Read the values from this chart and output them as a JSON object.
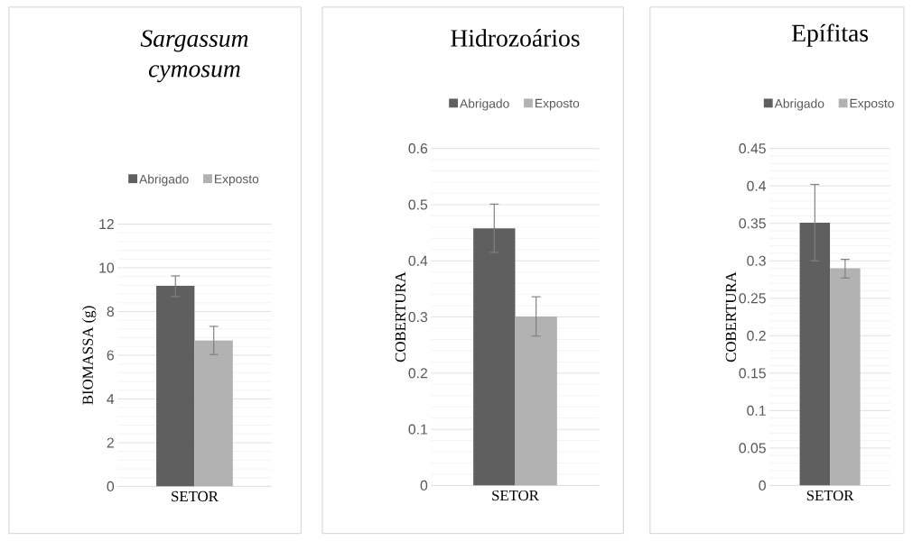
{
  "chart_data": [
    {
      "type": "bar",
      "title": "*Sargassum cymosum*",
      "ylabel": "BIOMASSA (g)",
      "categories": [
        "SETOR"
      ],
      "legend": "top",
      "grid": "y",
      "ylim": [
        0,
        12
      ],
      "yticks": [
        0,
        2,
        4,
        6,
        8,
        10,
        12
      ],
      "series": [
        {
          "name": "Abrigado",
          "color": "#5f5f5f",
          "values": [
            9.17
          ],
          "errors": [
            [
              8.68,
              9.63
            ]
          ]
        },
        {
          "name": "Exposto",
          "color": "#b2b2b2",
          "values": [
            6.68
          ],
          "errors": [
            [
              6.03,
              7.32
            ]
          ]
        }
      ]
    },
    {
      "type": "bar",
      "title": "Hidrozoários",
      "ylabel": "COBERTURA",
      "categories": [
        "SETOR"
      ],
      "legend": "top",
      "grid": "y",
      "ylim": [
        0,
        0.6
      ],
      "yticks": [
        0,
        0.1,
        0.2,
        0.3,
        0.4,
        0.5,
        0.6
      ],
      "series": [
        {
          "name": "Abrigado",
          "color": "#5f5f5f",
          "values": [
            0.458
          ],
          "errors": [
            [
              0.415,
              0.501
            ]
          ]
        },
        {
          "name": "Exposto",
          "color": "#b2b2b2",
          "values": [
            0.301
          ],
          "errors": [
            [
              0.266,
              0.336
            ]
          ]
        }
      ]
    },
    {
      "type": "bar",
      "title": "Epífitas",
      "ylabel": "COBERTURA",
      "categories": [
        "SETOR"
      ],
      "legend": "top",
      "grid": "y",
      "ylim": [
        0,
        0.45
      ],
      "yticks": [
        0,
        0.05,
        0.1,
        0.15,
        0.2,
        0.25,
        0.3,
        0.35,
        0.4,
        0.45
      ],
      "series": [
        {
          "name": "Abrigado",
          "color": "#5f5f5f",
          "values": [
            0.351
          ],
          "errors": [
            [
              0.3,
              0.402
            ]
          ]
        },
        {
          "name": "Exposto",
          "color": "#b2b2b2",
          "values": [
            0.29
          ],
          "errors": [
            [
              0.277,
              0.302
            ]
          ]
        }
      ]
    }
  ]
}
